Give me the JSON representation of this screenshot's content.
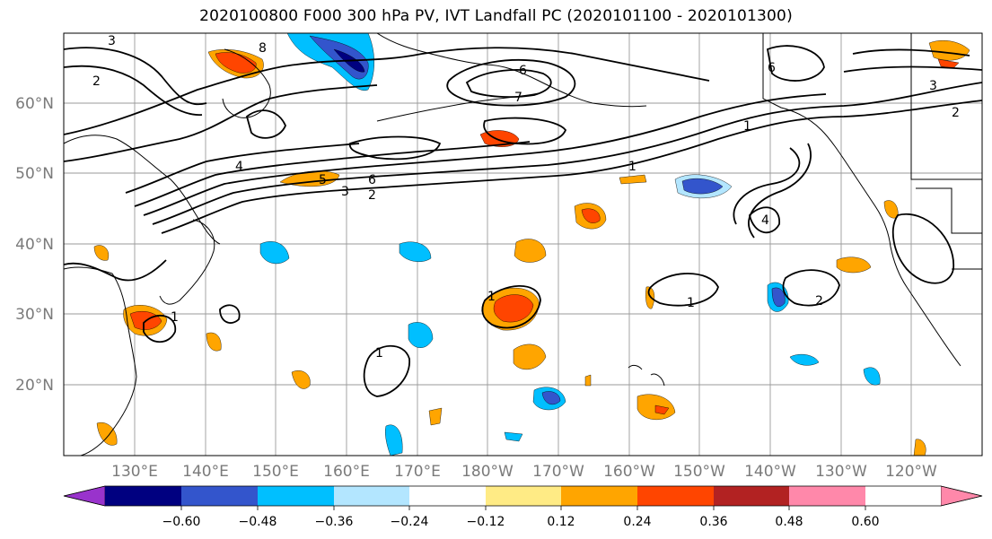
{
  "title": "2020100800 F000 300 hPa PV, IVT Landfall PC (2020101100 - 2020101300)",
  "map": {
    "lat_labels": [
      "60°N",
      "50°N",
      "40°N",
      "30°N",
      "20°N"
    ],
    "lon_labels": [
      "130°E",
      "140°E",
      "150°E",
      "160°E",
      "170°E",
      "180°W",
      "170°W",
      "160°W",
      "150°W",
      "140°W",
      "130°W",
      "120°W"
    ],
    "contour_labels": [
      "3",
      "2",
      "8",
      "6",
      "7",
      "1",
      "6",
      "1",
      "4",
      "6",
      "5",
      "3",
      "2",
      "1",
      "1",
      "1",
      "2",
      "4",
      "3",
      "2",
      "1"
    ],
    "colors": {
      "coast": "#000000",
      "grid": "#9a9a9a",
      "contour": "#000000"
    }
  },
  "colorbar": {
    "tick_labels": [
      "−0.60",
      "−0.48",
      "−0.36",
      "−0.24",
      "−0.12",
      "0.12",
      "0.24",
      "0.36",
      "0.48",
      "0.60"
    ],
    "colors": [
      "#9933cc",
      "#000080",
      "#3355cc",
      "#00bfff",
      "#b3e6ff",
      "#ffffff",
      "#ffeb85",
      "#ffa500",
      "#ff4500",
      "#b22222",
      "#ff88aa"
    ]
  }
}
